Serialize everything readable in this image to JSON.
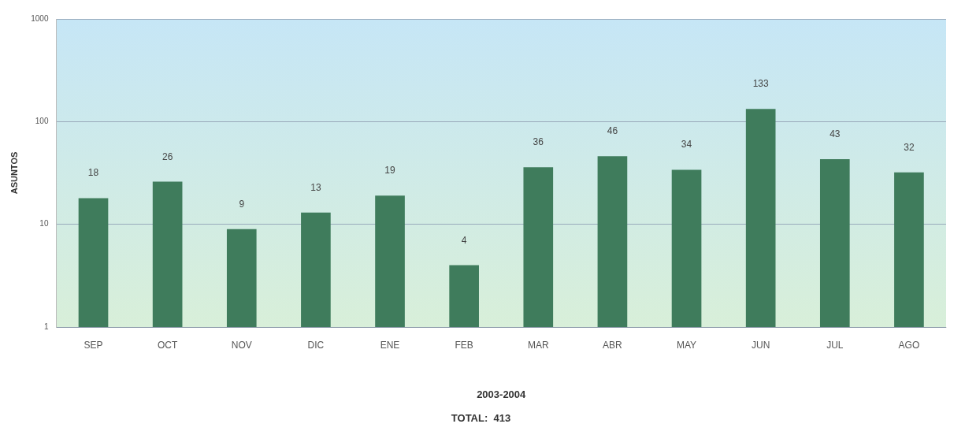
{
  "chart_data": {
    "type": "bar",
    "xlabel": "2003-2004",
    "ylabel": "ASUNTOS",
    "annotations": [
      "TOTAL:  413"
    ],
    "categories": [
      "SEP",
      "OCT",
      "NOV",
      "DIC",
      "ENE",
      "FEB",
      "MAR",
      "ABR",
      "MAY",
      "JUN",
      "JUL",
      "AGO"
    ],
    "values": [
      18,
      26,
      9,
      13,
      19,
      4,
      36,
      46,
      34,
      133,
      43,
      32
    ],
    "color": "#3f7c5c",
    "log": true,
    "ylim": [
      1,
      1000
    ],
    "yticks": [
      1,
      10,
      100,
      1000
    ],
    "grid": "y",
    "data_labels": true,
    "legend": false
  }
}
